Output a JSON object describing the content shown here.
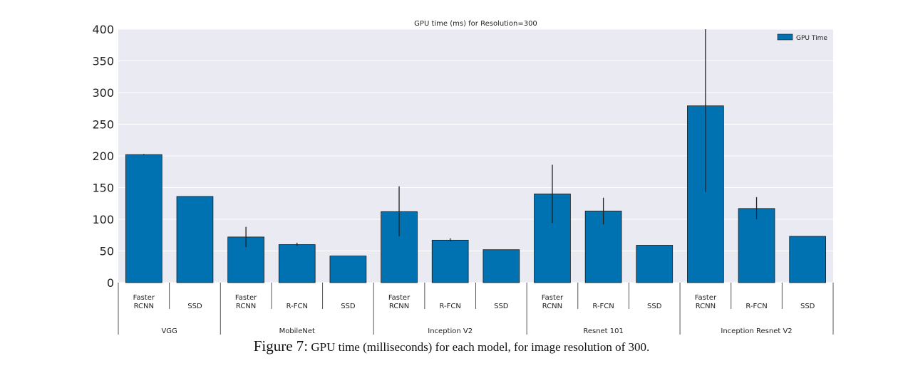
{
  "chart_data": {
    "type": "bar",
    "title": "GPU time (ms) for Resolution=300",
    "legend": {
      "label": "GPU Time",
      "placement": "top-right"
    },
    "ylim": [
      0,
      400
    ],
    "yticks": [
      0,
      50,
      100,
      150,
      200,
      250,
      300,
      350,
      400
    ],
    "grid": true,
    "groups": [
      {
        "name": "VGG",
        "bars": [
          {
            "label": "Faster RCNN",
            "value": 202,
            "err_low": 201,
            "err_high": 203
          },
          {
            "label": "SSD",
            "value": 136,
            "err_low": null,
            "err_high": null
          }
        ]
      },
      {
        "name": "MobileNet",
        "bars": [
          {
            "label": "Faster RCNN",
            "value": 72,
            "err_low": 56,
            "err_high": 88
          },
          {
            "label": "R-FCN",
            "value": 60,
            "err_low": 58,
            "err_high": 63
          },
          {
            "label": "SSD",
            "value": 42,
            "err_low": null,
            "err_high": null
          }
        ]
      },
      {
        "name": "Inception V2",
        "bars": [
          {
            "label": "Faster RCNN",
            "value": 112,
            "err_low": 73,
            "err_high": 152
          },
          {
            "label": "R-FCN",
            "value": 67,
            "err_low": 65,
            "err_high": 70
          },
          {
            "label": "SSD",
            "value": 52,
            "err_low": null,
            "err_high": null
          }
        ]
      },
      {
        "name": "Resnet 101",
        "bars": [
          {
            "label": "Faster RCNN",
            "value": 140,
            "err_low": 94,
            "err_high": 186
          },
          {
            "label": "R-FCN",
            "value": 113,
            "err_low": 92,
            "err_high": 134
          },
          {
            "label": "SSD",
            "value": 59,
            "err_low": null,
            "err_high": null
          }
        ]
      },
      {
        "name": "Inception Resnet V2",
        "bars": [
          {
            "label": "Faster RCNN",
            "value": 279,
            "err_low": 143,
            "err_high": 400
          },
          {
            "label": "R-FCN",
            "value": 117,
            "err_low": 100,
            "err_high": 135
          },
          {
            "label": "SSD",
            "value": 73,
            "err_low": null,
            "err_high": null
          }
        ]
      }
    ]
  },
  "caption": {
    "lead": "Figure 7:",
    "text": "GPU time (milliseconds) for each model, for image resolution of 300."
  },
  "colors": {
    "bar": "#0072b2",
    "plot_bg": "#eaeaf2",
    "grid": "#ffffff",
    "error_bar": "#222222"
  }
}
